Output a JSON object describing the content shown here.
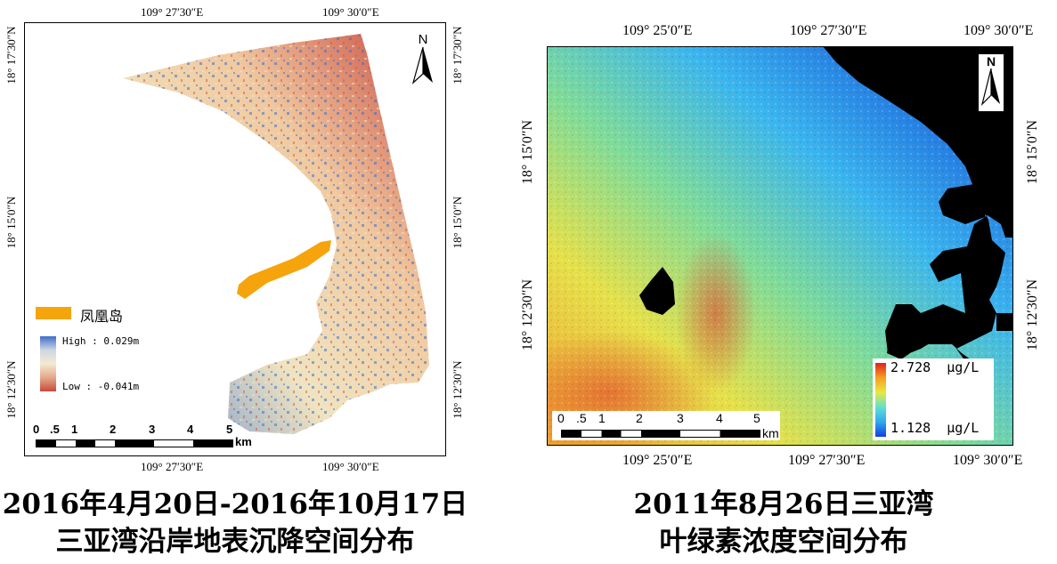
{
  "left_map": {
    "top_lon": [
      "109° 27′30″E",
      "109° 30′0″E"
    ],
    "bottom_lon": [
      "109° 27′30″E",
      "109° 30′0″E"
    ],
    "lat_labels": [
      "18° 17′30″N",
      "18° 15′0″N",
      "18° 12′30″N"
    ],
    "island_legend": "凤凰岛",
    "island_color": "#f5a40c",
    "legend_high": "High : 0.029m",
    "legend_low": "Low : -0.041m",
    "scale_ticks": [
      "0",
      ".5",
      "1",
      "2",
      "3",
      "4",
      "5"
    ],
    "scale_unit": "km",
    "north": "N",
    "caption_line1": "2016年4月20日-2016年10月17日",
    "caption_line2": "三亚湾沿岸地表沉降空间分布"
  },
  "right_map": {
    "top_lon": [
      "109° 25′0″E",
      "109° 27′30″E",
      "109° 30′0″E"
    ],
    "bottom_lon": [
      "109° 25′0″E",
      "109° 27′30″E",
      "109° 30′0″E"
    ],
    "lat_labels": [
      "18° 15′0″N",
      "18° 12′30″N"
    ],
    "legend_max": "2.728  μg/L",
    "legend_min": "1.128  μg/L",
    "scale_ticks": [
      "0",
      ".5",
      "1",
      "2",
      "3",
      "4",
      "5"
    ],
    "scale_unit": "km",
    "north": "N",
    "caption_line1": "2011年8月26日三亚湾",
    "caption_line2": "叶绿素浓度空间分布"
  }
}
